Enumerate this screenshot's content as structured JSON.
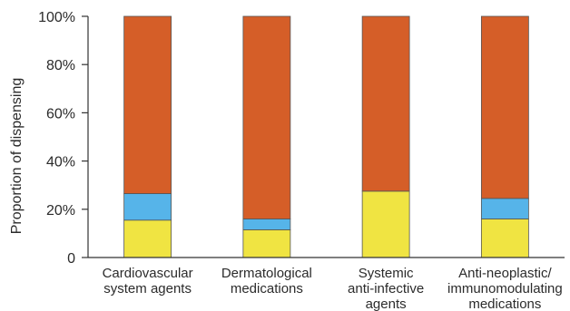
{
  "chart_data": {
    "type": "bar",
    "stacked": true,
    "title": "",
    "xlabel": "",
    "ylabel": "Proportion of dispensing",
    "ylim": [
      0,
      100
    ],
    "yticks": [
      "0",
      "20%",
      "40%",
      "60%",
      "80%",
      "100%"
    ],
    "grid": false,
    "categories": [
      [
        "Cardiovascular",
        "system agents"
      ],
      [
        "Dermatological",
        "medications"
      ],
      [
        "Systemic",
        "anti-infective",
        "agents"
      ],
      [
        "Anti-neoplastic/",
        "immunomodulating",
        "medications"
      ]
    ],
    "series": [
      {
        "color": "#f0e442",
        "values": [
          15.5,
          11.5,
          27.5,
          16.0
        ]
      },
      {
        "color": "#56b4e9",
        "values": [
          11.0,
          4.5,
          0.0,
          8.5
        ]
      },
      {
        "color": "#d55e28",
        "values": [
          73.5,
          84.0,
          72.5,
          75.5
        ]
      }
    ]
  }
}
